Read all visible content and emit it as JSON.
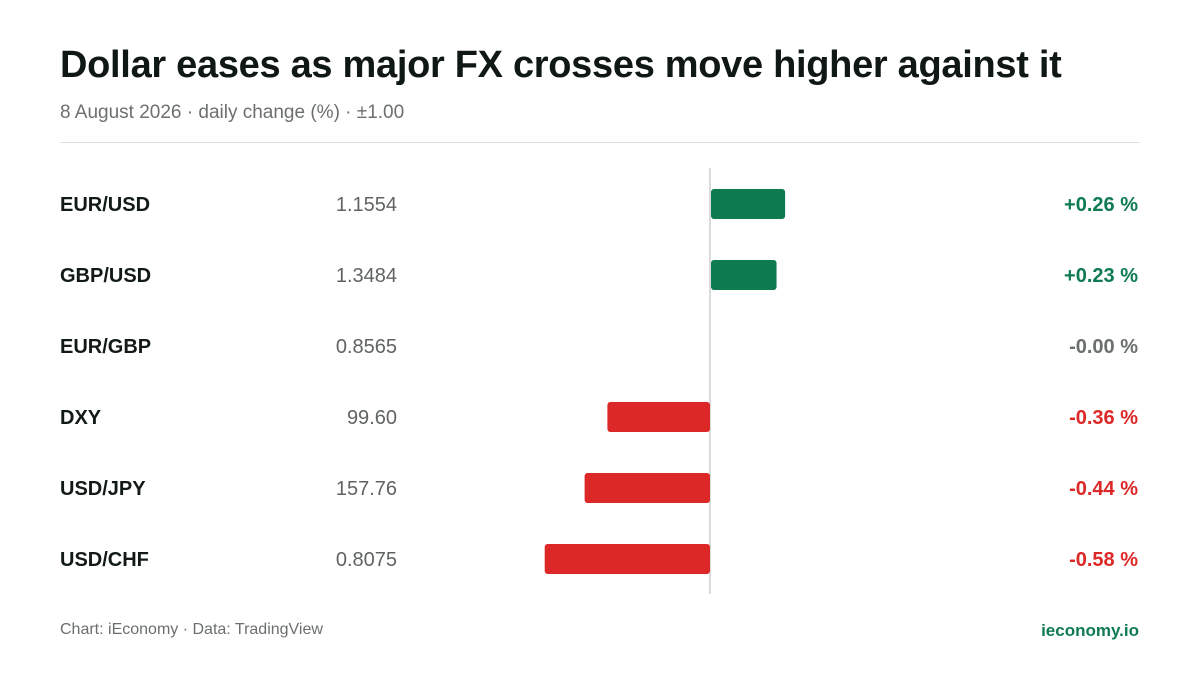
{
  "header": {
    "title": "Dollar eases as major FX crosses move higher against it",
    "subtitle": "8 August 2026 · daily change (%) · ±1.00"
  },
  "colors": {
    "positive": "#0e7b51",
    "negative": "#dd2828",
    "neutral": "#6b706e",
    "brand": "#0e7b51"
  },
  "chart_data": {
    "type": "bar",
    "orientation": "horizontal",
    "categories": [
      "EUR/USD",
      "GBP/USD",
      "EUR/GBP",
      "DXY",
      "USD/JPY",
      "USD/CHF"
    ],
    "prices": [
      "1.1554",
      "1.3484",
      "0.8565",
      "99.60",
      "157.76",
      "0.8075"
    ],
    "values": [
      0.26,
      0.23,
      0.0,
      -0.36,
      -0.44,
      -0.58
    ],
    "value_labels": [
      "+0.26 %",
      "+0.23 %",
      "-0.00 %",
      "-0.36 %",
      "-0.44 %",
      "-0.58 %"
    ],
    "xlim": [
      -1.0,
      1.0
    ],
    "grid": false,
    "zero_line": true
  },
  "footer": {
    "source": "Chart: iEconomy · Data: TradingView",
    "brand": "ieconomy.io"
  }
}
